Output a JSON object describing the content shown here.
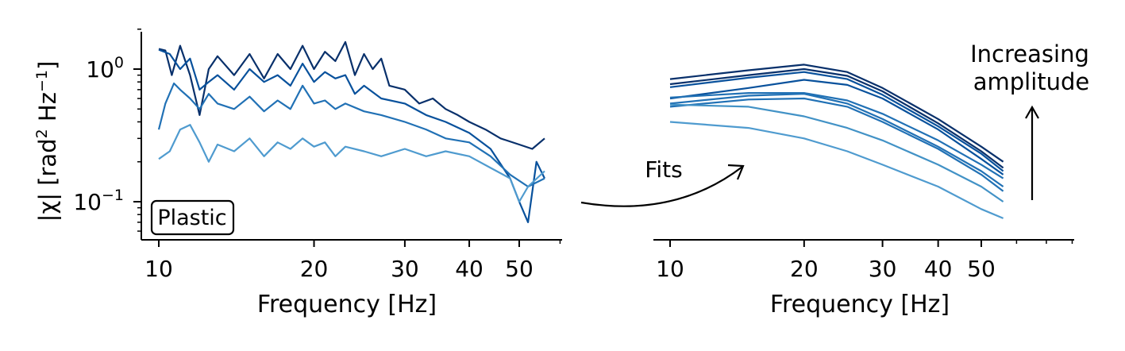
{
  "chart_data": [
    {
      "type": "line",
      "panel": "left",
      "xscale": "log",
      "yscale": "log",
      "xlim": [
        9.5,
        60
      ],
      "ylim": [
        0.052,
        2.0
      ],
      "xlabel": "Frequency [Hz]",
      "ylabel": "|χ| [rad² Hz⁻¹]",
      "ylabel_parts": {
        "pre": "|χ| [rad",
        "sup1": "2",
        "mid": " Hz",
        "sup2": "−1",
        "post": "]"
      },
      "xticks": [
        10,
        20,
        30,
        40,
        50
      ],
      "xtick_labels": [
        "10",
        "20",
        "30",
        "40",
        "50"
      ],
      "yticks": [
        {
          "value": 1.0,
          "base": "10",
          "exp": "0"
        },
        {
          "value": 0.1,
          "base": "10",
          "exp": "−1"
        }
      ],
      "annotation": "Plastic",
      "series": [
        {
          "color": "#08306b",
          "values": [
            [
              10,
              1.42
            ],
            [
              10.3,
              1.38
            ],
            [
              10.6,
              0.9
            ],
            [
              11,
              1.5
            ],
            [
              11.5,
              0.9
            ],
            [
              12,
              0.45
            ],
            [
              12.5,
              1.0
            ],
            [
              13,
              1.25
            ],
            [
              14,
              0.9
            ],
            [
              15,
              1.3
            ],
            [
              16,
              0.85
            ],
            [
              17,
              1.3
            ],
            [
              18,
              1.0
            ],
            [
              19,
              1.5
            ],
            [
              20,
              1.0
            ],
            [
              21,
              1.35
            ],
            [
              22,
              1.15
            ],
            [
              23,
              1.6
            ],
            [
              24,
              0.9
            ],
            [
              25,
              1.3
            ],
            [
              26,
              1.0
            ],
            [
              27,
              1.2
            ],
            [
              28,
              0.75
            ],
            [
              30,
              0.7
            ],
            [
              32,
              0.55
            ],
            [
              34,
              0.6
            ],
            [
              36,
              0.5
            ],
            [
              38,
              0.45
            ],
            [
              40,
              0.4
            ],
            [
              43,
              0.35
            ],
            [
              46,
              0.3
            ],
            [
              50,
              0.27
            ],
            [
              53,
              0.25
            ],
            [
              56,
              0.3
            ]
          ]
        },
        {
          "color": "#08519c",
          "values": [
            [
              10,
              1.4
            ],
            [
              10.5,
              1.3
            ],
            [
              11,
              1.0
            ],
            [
              11.5,
              1.2
            ],
            [
              12,
              0.7
            ],
            [
              12.5,
              0.8
            ],
            [
              13,
              0.9
            ],
            [
              14,
              0.7
            ],
            [
              15,
              1.0
            ],
            [
              16,
              0.8
            ],
            [
              17,
              0.9
            ],
            [
              18,
              0.75
            ],
            [
              19,
              1.1
            ],
            [
              20,
              0.8
            ],
            [
              21,
              0.95
            ],
            [
              22,
              0.85
            ],
            [
              23,
              0.9
            ],
            [
              24,
              0.65
            ],
            [
              25,
              0.75
            ],
            [
              27,
              0.6
            ],
            [
              30,
              0.55
            ],
            [
              33,
              0.45
            ],
            [
              36,
              0.4
            ],
            [
              40,
              0.33
            ],
            [
              44,
              0.25
            ],
            [
              48,
              0.15
            ],
            [
              50,
              0.1
            ],
            [
              52,
              0.07
            ],
            [
              54,
              0.2
            ],
            [
              56,
              0.15
            ]
          ]
        },
        {
          "color": "#2171b5",
          "values": [
            [
              10,
              0.35
            ],
            [
              10.3,
              0.55
            ],
            [
              10.7,
              0.78
            ],
            [
              11,
              0.7
            ],
            [
              11.5,
              0.6
            ],
            [
              12,
              0.5
            ],
            [
              12.5,
              0.65
            ],
            [
              13,
              0.55
            ],
            [
              14,
              0.5
            ],
            [
              15,
              0.62
            ],
            [
              16,
              0.48
            ],
            [
              17,
              0.58
            ],
            [
              18,
              0.5
            ],
            [
              19,
              0.75
            ],
            [
              20,
              0.55
            ],
            [
              21,
              0.58
            ],
            [
              22,
              0.5
            ],
            [
              23,
              0.55
            ],
            [
              25,
              0.48
            ],
            [
              27,
              0.45
            ],
            [
              30,
              0.4
            ],
            [
              33,
              0.35
            ],
            [
              36,
              0.3
            ],
            [
              40,
              0.28
            ],
            [
              44,
              0.22
            ],
            [
              48,
              0.16
            ],
            [
              52,
              0.13
            ],
            [
              56,
              0.15
            ]
          ]
        },
        {
          "color": "#4f9bcf",
          "values": [
            [
              10,
              0.21
            ],
            [
              10.5,
              0.24
            ],
            [
              11,
              0.35
            ],
            [
              11.5,
              0.38
            ],
            [
              12,
              0.28
            ],
            [
              12.5,
              0.2
            ],
            [
              13,
              0.27
            ],
            [
              14,
              0.24
            ],
            [
              15,
              0.3
            ],
            [
              16,
              0.22
            ],
            [
              17,
              0.28
            ],
            [
              18,
              0.25
            ],
            [
              19,
              0.3
            ],
            [
              20,
              0.26
            ],
            [
              21,
              0.28
            ],
            [
              22,
              0.22
            ],
            [
              23,
              0.26
            ],
            [
              25,
              0.24
            ],
            [
              27,
              0.22
            ],
            [
              30,
              0.25
            ],
            [
              33,
              0.22
            ],
            [
              36,
              0.24
            ],
            [
              40,
              0.22
            ],
            [
              44,
              0.18
            ],
            [
              48,
              0.15
            ],
            [
              50,
              0.1
            ],
            [
              52,
              0.13
            ],
            [
              56,
              0.17
            ]
          ]
        }
      ]
    },
    {
      "type": "line",
      "panel": "right",
      "xscale": "log",
      "yscale": "log",
      "xlim": [
        9.5,
        85
      ],
      "ylim": [
        0.052,
        2.0
      ],
      "xlabel": "Frequency [Hz]",
      "xticks": [
        10,
        20,
        30,
        40,
        50
      ],
      "xtick_labels": [
        "10",
        "20",
        "30",
        "40",
        "50"
      ],
      "series": [
        {
          "color": "#08306b",
          "values": [
            [
              10,
              0.84
            ],
            [
              15,
              0.98
            ],
            [
              20,
              1.08
            ],
            [
              25,
              0.95
            ],
            [
              30,
              0.72
            ],
            [
              40,
              0.42
            ],
            [
              50,
              0.26
            ],
            [
              56,
              0.2
            ]
          ]
        },
        {
          "color": "#08306b",
          "values": [
            [
              10,
              0.77
            ],
            [
              15,
              0.9
            ],
            [
              20,
              1.0
            ],
            [
              25,
              0.89
            ],
            [
              30,
              0.68
            ],
            [
              40,
              0.39
            ],
            [
              50,
              0.24
            ],
            [
              56,
              0.18
            ]
          ]
        },
        {
          "color": "#08519c",
          "values": [
            [
              10,
              0.73
            ],
            [
              15,
              0.86
            ],
            [
              20,
              0.95
            ],
            [
              25,
              0.84
            ],
            [
              30,
              0.64
            ],
            [
              40,
              0.37
            ],
            [
              50,
              0.23
            ],
            [
              56,
              0.17
            ]
          ]
        },
        {
          "color": "#08519c",
          "values": [
            [
              10,
              0.6
            ],
            [
              15,
              0.72
            ],
            [
              20,
              0.83
            ],
            [
              25,
              0.76
            ],
            [
              30,
              0.6
            ],
            [
              40,
              0.35
            ],
            [
              50,
              0.21
            ],
            [
              56,
              0.16
            ]
          ]
        },
        {
          "color": "#2171b5",
          "values": [
            [
              10,
              0.61
            ],
            [
              15,
              0.66
            ],
            [
              20,
              0.66
            ],
            [
              25,
              0.58
            ],
            [
              30,
              0.46
            ],
            [
              40,
              0.29
            ],
            [
              50,
              0.19
            ],
            [
              56,
              0.15
            ]
          ]
        },
        {
          "color": "#2171b5",
          "values": [
            [
              10,
              0.55
            ],
            [
              15,
              0.63
            ],
            [
              20,
              0.65
            ],
            [
              25,
              0.55
            ],
            [
              30,
              0.42
            ],
            [
              40,
              0.26
            ],
            [
              50,
              0.17
            ],
            [
              56,
              0.13
            ]
          ]
        },
        {
          "color": "#2171b5",
          "values": [
            [
              10,
              0.52
            ],
            [
              15,
              0.59
            ],
            [
              20,
              0.6
            ],
            [
              25,
              0.52
            ],
            [
              30,
              0.4
            ],
            [
              40,
              0.25
            ],
            [
              50,
              0.16
            ],
            [
              56,
              0.12
            ]
          ]
        },
        {
          "color": "#4292c6",
          "values": [
            [
              10,
              0.54
            ],
            [
              15,
              0.52
            ],
            [
              20,
              0.44
            ],
            [
              25,
              0.36
            ],
            [
              30,
              0.29
            ],
            [
              40,
              0.19
            ],
            [
              50,
              0.13
            ],
            [
              56,
              0.1
            ]
          ]
        },
        {
          "color": "#4f9bcf",
          "values": [
            [
              10,
              0.4
            ],
            [
              15,
              0.36
            ],
            [
              20,
              0.3
            ],
            [
              25,
              0.24
            ],
            [
              30,
              0.19
            ],
            [
              40,
              0.13
            ],
            [
              50,
              0.088
            ],
            [
              56,
              0.075
            ]
          ]
        }
      ]
    }
  ],
  "annotations": {
    "fits_label": "Fits",
    "increasing_line1": "Increasing",
    "increasing_line2": "amplitude"
  }
}
